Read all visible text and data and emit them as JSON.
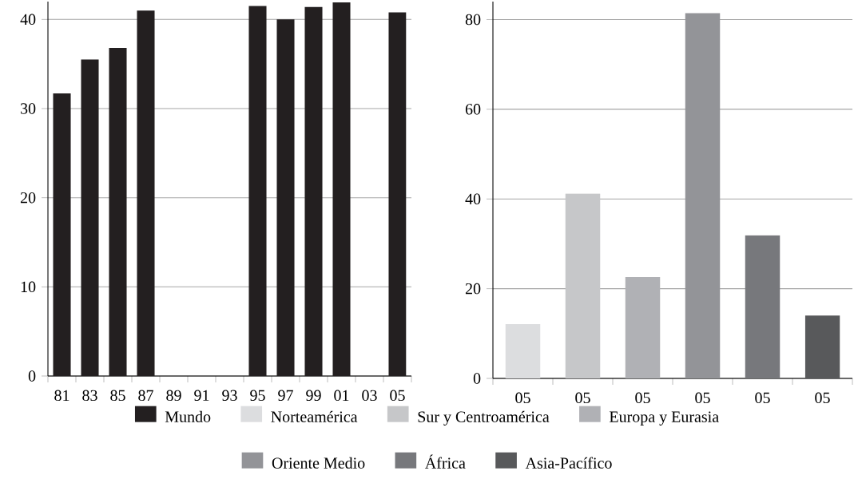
{
  "chart_data": [
    {
      "type": "bar",
      "categories": [
        "81",
        "83",
        "85",
        "87",
        "89",
        "91",
        "93",
        "95",
        "97",
        "99",
        "01",
        "03",
        "05"
      ],
      "series": [
        {
          "name": "Mundo",
          "color": "#231f20",
          "values": [
            31.7,
            35.5,
            36.8,
            41.0,
            null,
            null,
            null,
            41.5,
            40.0,
            41.4,
            41.9,
            null,
            40.8
          ]
        }
      ],
      "ylim": [
        0,
        42
      ],
      "yticks": [
        0,
        10,
        20,
        30,
        40
      ],
      "grid": "y",
      "legend": "bottom"
    },
    {
      "type": "bar",
      "categories": [
        "05",
        "05",
        "05",
        "05",
        "05",
        "05"
      ],
      "series": [
        {
          "name": "Norteamérica",
          "color": "#dcdddf",
          "values": [
            12.1,
            null,
            null,
            null,
            null,
            null
          ]
        },
        {
          "name": "Sur y Centroamérica",
          "color": "#c6c7c9",
          "values": [
            null,
            41.2,
            null,
            null,
            null,
            null
          ]
        },
        {
          "name": "Europa y Eurasia",
          "color": "#b0b1b5",
          "values": [
            null,
            null,
            22.6,
            null,
            null,
            null
          ]
        },
        {
          "name": "Oriente Medio",
          "color": "#939498",
          "values": [
            null,
            null,
            null,
            81.4,
            null,
            null
          ]
        },
        {
          "name": "África",
          "color": "#77787c",
          "values": [
            null,
            null,
            null,
            null,
            31.9,
            null
          ]
        },
        {
          "name": "Asia-Pacífico",
          "color": "#58595b",
          "values": [
            null,
            null,
            null,
            null,
            null,
            14.0
          ]
        }
      ],
      "ylim": [
        0,
        84
      ],
      "yticks": [
        0,
        20,
        40,
        60,
        80
      ],
      "grid": "y",
      "legend": "bottom"
    }
  ]
}
